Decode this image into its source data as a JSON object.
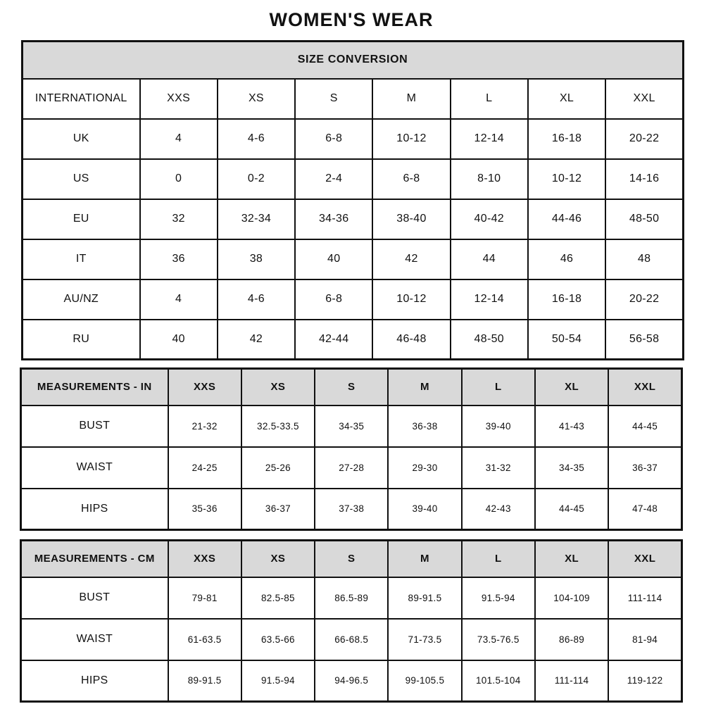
{
  "page": {
    "title": "WOMEN'S WEAR"
  },
  "colors": {
    "header_background": "#d9d9d9",
    "border": "#111111",
    "text": "#111111",
    "page_background": "#ffffff"
  },
  "tables": {
    "conversion": {
      "header": "SIZE CONVERSION",
      "columns": [
        "INTERNATIONAL",
        "XXS",
        "XS",
        "S",
        "M",
        "L",
        "XL",
        "XXL"
      ],
      "rows": [
        {
          "label": "UK",
          "values": [
            "4",
            "4-6",
            "6-8",
            "10-12",
            "12-14",
            "16-18",
            "20-22"
          ]
        },
        {
          "label": "US",
          "values": [
            "0",
            "0-2",
            "2-4",
            "6-8",
            "8-10",
            "10-12",
            "14-16"
          ]
        },
        {
          "label": "EU",
          "values": [
            "32",
            "32-34",
            "34-36",
            "38-40",
            "40-42",
            "44-46",
            "48-50"
          ]
        },
        {
          "label": "IT",
          "values": [
            "36",
            "38",
            "40",
            "42",
            "44",
            "46",
            "48"
          ]
        },
        {
          "label": "AU/NZ",
          "values": [
            "4",
            "4-6",
            "6-8",
            "10-12",
            "12-14",
            "16-18",
            "20-22"
          ]
        },
        {
          "label": "RU",
          "values": [
            "40",
            "42",
            "42-44",
            "46-48",
            "48-50",
            "50-54",
            "56-58"
          ]
        }
      ]
    },
    "inches": {
      "header": "MEASUREMENTS - IN",
      "columns": [
        "XXS",
        "XS",
        "S",
        "M",
        "L",
        "XL",
        "XXL"
      ],
      "rows": [
        {
          "label": "BUST",
          "values": [
            "21-32",
            "32.5-33.5",
            "34-35",
            "36-38",
            "39-40",
            "41-43",
            "44-45"
          ]
        },
        {
          "label": "WAIST",
          "values": [
            "24-25",
            "25-26",
            "27-28",
            "29-30",
            "31-32",
            "34-35",
            "36-37"
          ]
        },
        {
          "label": "HIPS",
          "values": [
            "35-36",
            "36-37",
            "37-38",
            "39-40",
            "42-43",
            "44-45",
            "47-48"
          ]
        }
      ]
    },
    "centimeters": {
      "header": "MEASUREMENTS - CM",
      "columns": [
        "XXS",
        "XS",
        "S",
        "M",
        "L",
        "XL",
        "XXL"
      ],
      "rows": [
        {
          "label": "BUST",
          "values": [
            "79-81",
            "82.5-85",
            "86.5-89",
            "89-91.5",
            "91.5-94",
            "104-109",
            "111-114"
          ]
        },
        {
          "label": "WAIST",
          "values": [
            "61-63.5",
            "63.5-66",
            "66-68.5",
            "71-73.5",
            "73.5-76.5",
            "86-89",
            "81-94"
          ]
        },
        {
          "label": "HIPS",
          "values": [
            "89-91.5",
            "91.5-94",
            "94-96.5",
            "99-105.5",
            "101.5-104",
            "111-114",
            "119-122"
          ]
        }
      ]
    }
  }
}
